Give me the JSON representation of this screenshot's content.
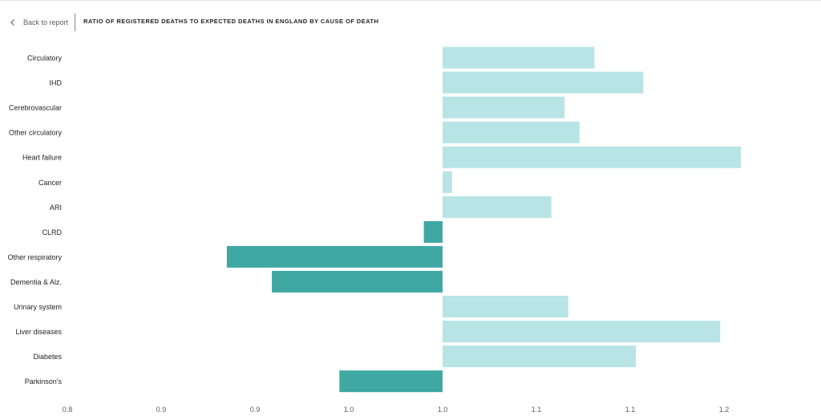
{
  "header": {
    "back_label": "Back to report",
    "title": "RATIO OF REGISTERED DEATHS TO EXPECTED DEATHS IN ENGLAND BY CAUSE OF DEATH",
    "back_icon": "chevron-left-icon"
  },
  "colors": {
    "above_baseline": "#b8e4e6",
    "below_baseline": "#3fa8a3"
  },
  "chart_data": {
    "type": "bar",
    "orientation": "horizontal",
    "title": "RATIO OF REGISTERED DEATHS TO EXPECTED DEATHS IN ENGLAND BY CAUSE OF DEATH",
    "baseline": 1.0,
    "xlim": [
      0.8,
      1.2
    ],
    "xticks": [
      "0.8",
      "0.9",
      "0.9",
      "1.0",
      "1.0",
      "1.1",
      "1.1",
      "1.2"
    ],
    "xtick_values": [
      0.8,
      0.85,
      0.9,
      0.95,
      1.0,
      1.05,
      1.1,
      1.15
    ],
    "grid": false,
    "categories": [
      "Circulatory",
      "IHD",
      "Cerebrovascular",
      "Other circulatory",
      "Heart failure",
      "Cancer",
      "ARI",
      "CLRD",
      "Other respiratory",
      "Dementia & Alz.",
      "Urinary system",
      "Liver diseases",
      "Diabetes",
      "Parkinson's"
    ],
    "values": [
      1.081,
      1.107,
      1.065,
      1.073,
      1.159,
      1.005,
      1.058,
      0.99,
      0.885,
      0.909,
      1.067,
      1.148,
      1.103,
      0.945
    ]
  }
}
